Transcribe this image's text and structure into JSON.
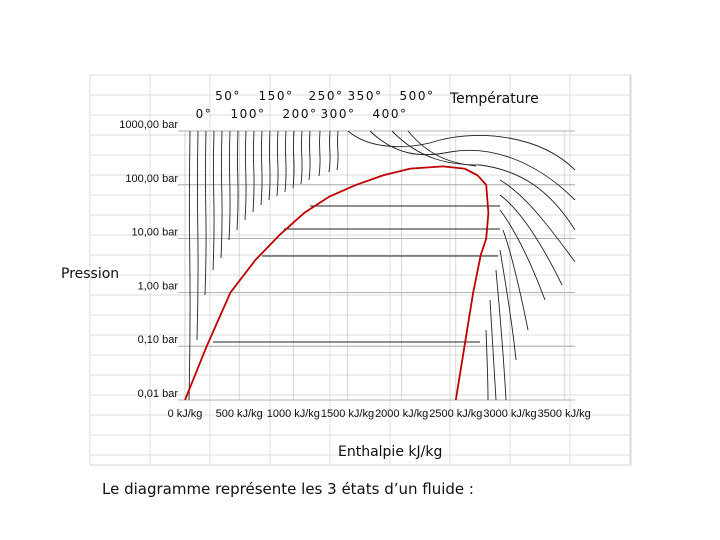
{
  "chart_data": {
    "type": "line",
    "title": "",
    "xlabel": "Enthalpie kJ/kg",
    "ylabel": "Pression",
    "temperature_label": "Température",
    "x_ticks": [
      "0 kJ/kg",
      "500 kJ/kg",
      "1000 kJ/kg",
      "1500 kJ/kg",
      "2000 kJ/kg",
      "2500 kJ/kg",
      "3000 kJ/kg",
      "3500 kJ/kg"
    ],
    "x_tick_values": [
      0,
      500,
      1000,
      1500,
      2000,
      2500,
      3000,
      3500
    ],
    "y_ticks": [
      "0,01 bar",
      "0,10 bar",
      "1,00 bar",
      "10,00 bar",
      "100,00 bar",
      "1000,00 bar"
    ],
    "y_tick_values": [
      0.01,
      0.1,
      1,
      10,
      100,
      1000
    ],
    "xlim": [
      0,
      3600
    ],
    "ylim": [
      0.01,
      1000
    ],
    "y_scale": "log",
    "grid": true,
    "temperature_labels": [
      "0°",
      "50°",
      "100°",
      "150°",
      "200°",
      "250°",
      "300°",
      "350°",
      "400°",
      "500°"
    ],
    "series": [
      {
        "color": "#c00000",
        "x": [
          0,
          200,
          420,
          650,
          880,
          1100,
          1330,
          1580,
          1830,
          2080,
          2380,
          2580,
          2700,
          2780,
          2801,
          2780,
          2730,
          2660,
          2580,
          2500
        ],
        "y": [
          0.01,
          0.1,
          1,
          4,
          12,
          30,
          60,
          100,
          150,
          200,
          220,
          200,
          150,
          100,
          30,
          10,
          5,
          1,
          0.1,
          0.01
        ]
      }
    ]
  },
  "caption": "Le diagramme représente les 3 états d’un fluide :"
}
